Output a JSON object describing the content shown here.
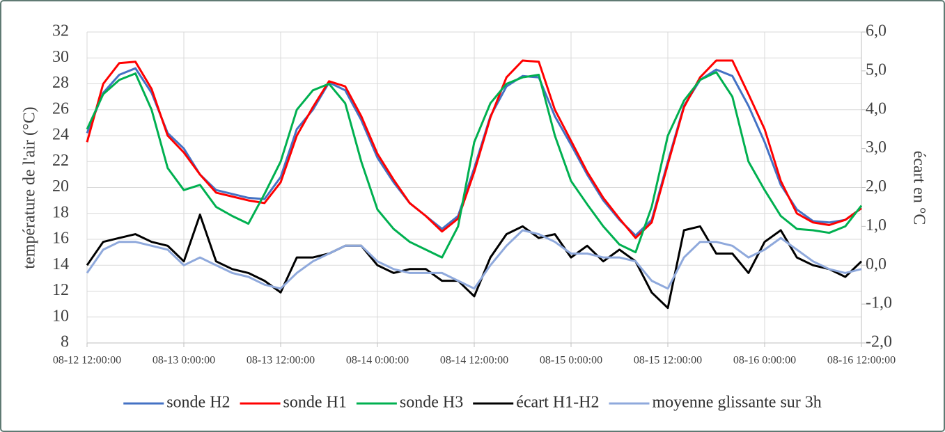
{
  "chart_data": {
    "type": "line",
    "y_label": "température de l'air (°C)",
    "y2_label": "écart en °C",
    "categories": [
      "08-12 12:00:00",
      null,
      null,
      null,
      null,
      null,
      "08-13 0:00:00",
      null,
      null,
      null,
      null,
      null,
      "08-13 12:00:00",
      null,
      null,
      null,
      null,
      null,
      "08-14 0:00:00",
      null,
      null,
      null,
      null,
      null,
      "08-14 12:00:00",
      null,
      null,
      null,
      null,
      null,
      "08-15 0:00:00",
      null,
      null,
      null,
      null,
      null,
      "08-15 12:00:00",
      null,
      null,
      null,
      null,
      null,
      "08-16 0:00:00",
      null,
      null,
      null,
      null,
      null,
      "08-16 12:00:00"
    ],
    "ylim": [
      8,
      32
    ],
    "yticks": [
      8,
      10,
      12,
      14,
      16,
      18,
      20,
      22,
      24,
      26,
      28,
      30,
      32
    ],
    "y2lim": [
      -2,
      6
    ],
    "y2ticks": [
      {
        "value": -2,
        "label": "-2,0"
      },
      {
        "value": -1,
        "label": "-1,0"
      },
      {
        "value": 0,
        "label": "0,0"
      },
      {
        "value": 1,
        "label": "1,0"
      },
      {
        "value": 2,
        "label": "2,0"
      },
      {
        "value": 3,
        "label": "3,0"
      },
      {
        "value": 4,
        "label": "4,0"
      },
      {
        "value": 5,
        "label": "5,0"
      },
      {
        "value": 6,
        "label": "6,0"
      }
    ],
    "grid": true,
    "legend": "bottom",
    "series": [
      {
        "name": "sonde H2",
        "color": "#4472c4",
        "values": [
          24.2,
          27.3,
          28.7,
          29.2,
          27.3,
          24.2,
          23.0,
          21.0,
          19.8,
          19.5,
          19.2,
          19.1,
          20.8,
          24.5,
          26.0,
          28.1,
          27.5,
          25.2,
          22.3,
          20.4,
          18.8,
          17.8,
          16.8,
          17.8,
          21.5,
          25.5,
          27.8,
          28.6,
          28.5,
          25.5,
          23.3,
          21.0,
          19.0,
          17.5,
          16.3,
          17.5,
          22.0,
          26.3,
          28.3,
          29.1,
          28.6,
          26.3,
          23.5,
          20.2,
          18.3,
          17.4,
          17.3,
          17.5,
          18.4
        ]
      },
      {
        "name": "sonde H1",
        "color": "#ff0000",
        "values": [
          23.5,
          28.0,
          29.6,
          29.7,
          27.6,
          24.0,
          22.7,
          21.0,
          19.6,
          19.3,
          19.0,
          18.8,
          20.4,
          24.0,
          26.2,
          28.2,
          27.8,
          25.5,
          22.6,
          20.6,
          18.8,
          17.8,
          16.6,
          17.6,
          21.2,
          25.4,
          28.5,
          29.8,
          29.7,
          26.0,
          23.6,
          21.2,
          19.2,
          17.6,
          16.1,
          17.3,
          21.8,
          26.2,
          28.5,
          29.8,
          29.8,
          27.2,
          24.5,
          20.5,
          18.0,
          17.3,
          17.1,
          17.5,
          18.4
        ]
      },
      {
        "name": "sonde H3",
        "color": "#00b050",
        "values": [
          24.5,
          27.2,
          28.3,
          28.8,
          26.0,
          21.5,
          19.8,
          20.2,
          18.5,
          17.8,
          17.2,
          19.5,
          22.0,
          26.0,
          27.5,
          28.0,
          26.5,
          22.0,
          18.3,
          16.8,
          15.8,
          15.2,
          14.6,
          17.0,
          23.5,
          26.5,
          28.0,
          28.5,
          28.7,
          24.0,
          20.5,
          18.7,
          17.0,
          15.6,
          15.0,
          18.5,
          24.0,
          26.7,
          28.3,
          28.9,
          27.0,
          22.0,
          19.8,
          17.8,
          16.8,
          16.7,
          16.5,
          17.0,
          18.6
        ]
      },
      {
        "name": "écart H1-H2",
        "color": "#000000",
        "axis": "y2",
        "values": [
          0.0,
          0.6,
          0.7,
          0.8,
          0.6,
          0.5,
          0.1,
          1.3,
          0.1,
          -0.1,
          -0.2,
          -0.4,
          -0.7,
          0.2,
          0.2,
          0.3,
          0.5,
          0.5,
          0.0,
          -0.2,
          -0.1,
          -0.1,
          -0.4,
          -0.4,
          -0.8,
          0.2,
          0.8,
          1.0,
          0.7,
          0.8,
          0.2,
          0.5,
          0.1,
          0.4,
          0.1,
          -0.7,
          -1.1,
          0.9,
          1.0,
          0.3,
          0.3,
          -0.2,
          0.6,
          0.9,
          0.2,
          0.0,
          -0.1,
          -0.3,
          0.1
        ]
      },
      {
        "name": "moyenne glissante sur 3h",
        "color": "#8fa9dc",
        "axis": "y2",
        "values": [
          -0.2,
          0.4,
          0.6,
          0.6,
          0.5,
          0.4,
          0.0,
          0.2,
          0.0,
          -0.2,
          -0.3,
          -0.5,
          -0.6,
          -0.2,
          0.1,
          0.3,
          0.5,
          0.5,
          0.1,
          -0.1,
          -0.2,
          -0.2,
          -0.2,
          -0.4,
          -0.6,
          0.0,
          0.5,
          0.9,
          0.8,
          0.6,
          0.3,
          0.3,
          0.2,
          0.2,
          0.1,
          -0.4,
          -0.6,
          0.2,
          0.6,
          0.6,
          0.5,
          0.2,
          0.4,
          0.7,
          0.4,
          0.1,
          -0.1,
          -0.2,
          -0.1
        ]
      }
    ]
  }
}
